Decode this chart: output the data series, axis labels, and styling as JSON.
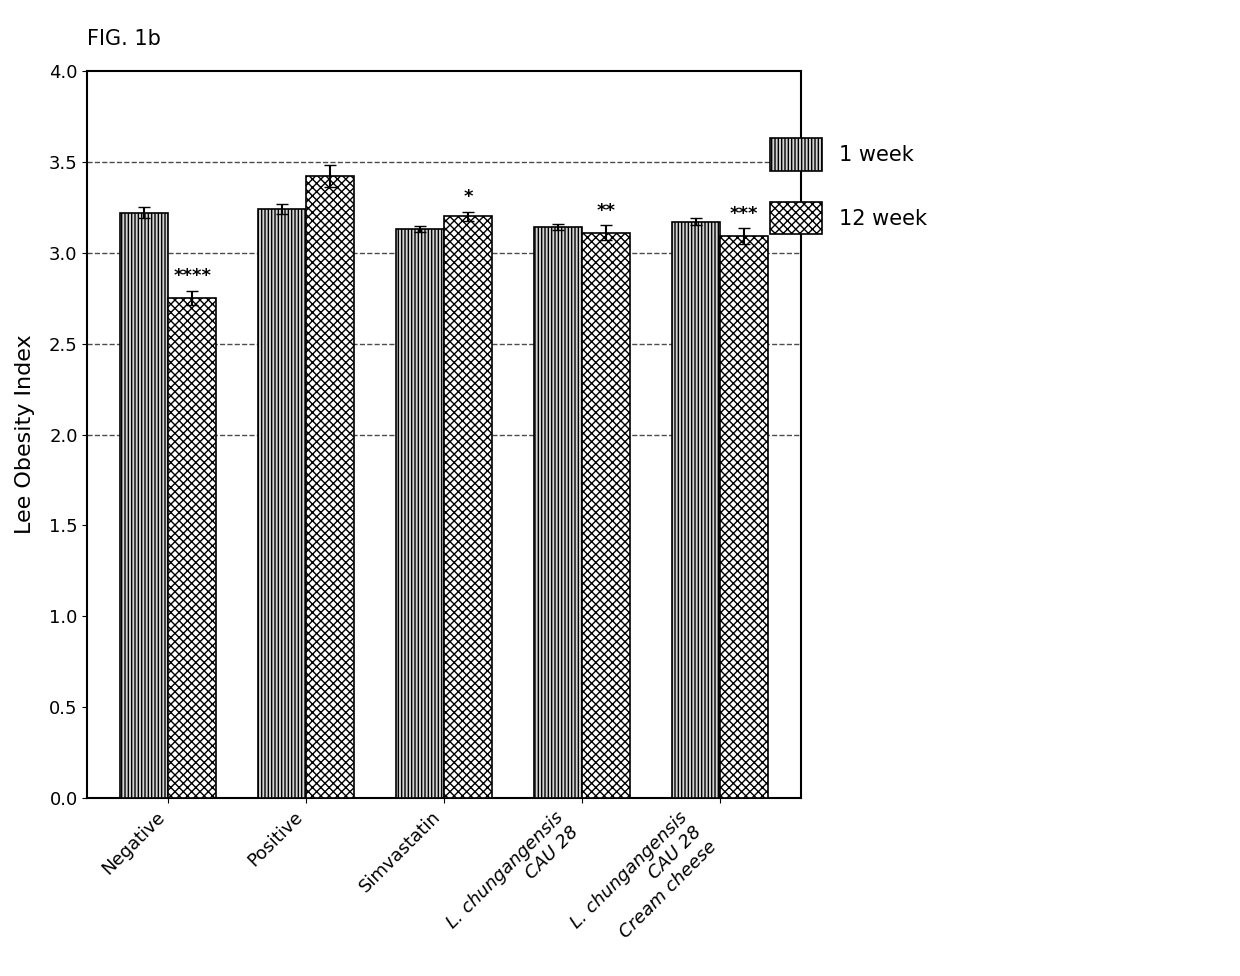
{
  "categories": [
    "Negative",
    "Positive",
    "Simvastatin",
    "L. chungangensis CAU 28",
    "L. chungangensis CAU 28\nCream cheese"
  ],
  "week1_values": [
    3.22,
    3.24,
    3.13,
    3.14,
    3.17
  ],
  "week12_values": [
    2.75,
    3.42,
    3.2,
    3.11,
    3.09
  ],
  "week1_errors": [
    0.03,
    0.03,
    0.015,
    0.015,
    0.02
  ],
  "week12_errors": [
    0.04,
    0.06,
    0.025,
    0.04,
    0.045
  ],
  "significance": [
    "****",
    "",
    "*",
    "**",
    "***"
  ],
  "ylim": [
    0,
    4.0
  ],
  "yticks": [
    0,
    0.5,
    1.0,
    1.5,
    2.0,
    2.5,
    3.0,
    3.5,
    4.0
  ],
  "ylabel": "Lee Obesity Index",
  "title": "FIG. 1b",
  "dashed_lines": [
    2.0,
    2.5,
    3.0,
    3.5
  ],
  "bar_width": 0.35,
  "week1_color": "#d3d3d3",
  "week12_color": "#404040",
  "legend_labels": [
    "1 week",
    "12 week"
  ],
  "fig_width": 12.4,
  "fig_height": 9.76
}
